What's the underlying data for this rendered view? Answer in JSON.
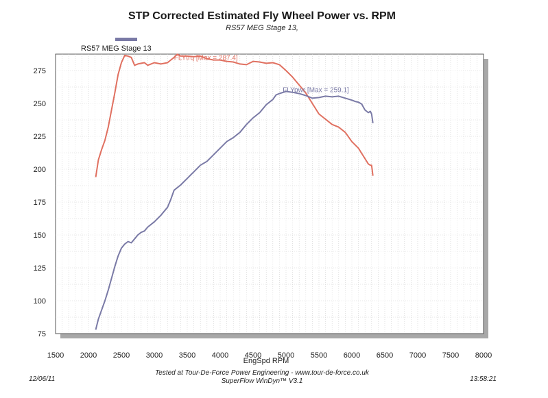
{
  "header": {
    "title": "STP Corrected Estimated Fly Wheel Power vs. RPM",
    "subtitle": "RS57 MEG Stage 13,"
  },
  "legend": {
    "label": "RS57 MEG Stage 13",
    "color": "#7a7aa6"
  },
  "footer": {
    "date": "12/06/11",
    "time": "13:58:21",
    "line1": "Tested at Tour-De-Force Power Engineering - www.tour-de-force.co.uk",
    "line2": "SuperFlow WinDyn™ V3.1"
  },
  "chart_data": {
    "type": "line",
    "title": "STP Corrected Estimated Fly Wheel Power vs. RPM",
    "subtitle": "RS57 MEG Stage 13,",
    "xlabel": "EngSpd RPM",
    "ylabel": "",
    "xlim": [
      1500,
      8000
    ],
    "ylim": [
      75,
      287.5
    ],
    "x_ticks": [
      1500,
      2000,
      2500,
      3000,
      3500,
      4000,
      4500,
      5000,
      5500,
      6000,
      6500,
      7000,
      7500,
      8000
    ],
    "y_ticks": [
      75,
      100,
      125,
      150,
      175,
      200,
      225,
      250,
      275
    ],
    "grid": true,
    "series": [
      {
        "name": "FLYtrq",
        "color": "#e07060",
        "annotation": "FLYtrq [Max = 287.4]",
        "annotation_anchor": [
          3300,
          283
        ],
        "points": [
          [
            2110,
            194
          ],
          [
            2150,
            207
          ],
          [
            2200,
            215
          ],
          [
            2250,
            222
          ],
          [
            2300,
            232
          ],
          [
            2350,
            245
          ],
          [
            2400,
            258
          ],
          [
            2450,
            272
          ],
          [
            2500,
            281
          ],
          [
            2550,
            286.5
          ],
          [
            2600,
            286
          ],
          [
            2650,
            285
          ],
          [
            2700,
            279
          ],
          [
            2750,
            280
          ],
          [
            2800,
            280.5
          ],
          [
            2850,
            281
          ],
          [
            2900,
            279
          ],
          [
            2950,
            280
          ],
          [
            3000,
            281
          ],
          [
            3100,
            280
          ],
          [
            3200,
            281
          ],
          [
            3250,
            283
          ],
          [
            3300,
            285
          ],
          [
            3350,
            287.4
          ],
          [
            3400,
            286
          ],
          [
            3500,
            286
          ],
          [
            3600,
            285.5
          ],
          [
            3700,
            286
          ],
          [
            3800,
            284
          ],
          [
            3900,
            283
          ],
          [
            4000,
            283
          ],
          [
            4100,
            282
          ],
          [
            4200,
            281.5
          ],
          [
            4300,
            280
          ],
          [
            4400,
            279.5
          ],
          [
            4500,
            282
          ],
          [
            4600,
            281.5
          ],
          [
            4700,
            280.5
          ],
          [
            4800,
            281
          ],
          [
            4900,
            279.5
          ],
          [
            5000,
            275
          ],
          [
            5100,
            270
          ],
          [
            5200,
            264
          ],
          [
            5300,
            258
          ],
          [
            5400,
            250
          ],
          [
            5500,
            242
          ],
          [
            5600,
            238
          ],
          [
            5700,
            234
          ],
          [
            5800,
            232
          ],
          [
            5900,
            228
          ],
          [
            6000,
            221
          ],
          [
            6100,
            216
          ],
          [
            6150,
            212
          ],
          [
            6200,
            208
          ],
          [
            6250,
            204
          ],
          [
            6280,
            203
          ],
          [
            6300,
            203
          ],
          [
            6320,
            195
          ]
        ]
      },
      {
        "name": "FLYpwr",
        "color": "#7a7aa6",
        "annotation": "FLYpwr [Max = 259.1]",
        "annotation_anchor": [
          4950,
          258.5
        ],
        "points": [
          [
            2110,
            78
          ],
          [
            2150,
            86
          ],
          [
            2200,
            93
          ],
          [
            2250,
            100
          ],
          [
            2300,
            108
          ],
          [
            2350,
            117
          ],
          [
            2400,
            126
          ],
          [
            2450,
            134
          ],
          [
            2500,
            140
          ],
          [
            2550,
            143
          ],
          [
            2600,
            145
          ],
          [
            2650,
            144
          ],
          [
            2700,
            147
          ],
          [
            2750,
            150
          ],
          [
            2800,
            152
          ],
          [
            2850,
            153
          ],
          [
            2900,
            156
          ],
          [
            3000,
            160
          ],
          [
            3100,
            165
          ],
          [
            3200,
            171
          ],
          [
            3250,
            177
          ],
          [
            3300,
            184
          ],
          [
            3400,
            188
          ],
          [
            3500,
            193
          ],
          [
            3600,
            198
          ],
          [
            3700,
            203
          ],
          [
            3800,
            206
          ],
          [
            3900,
            211
          ],
          [
            4000,
            216
          ],
          [
            4100,
            221
          ],
          [
            4200,
            224
          ],
          [
            4300,
            228
          ],
          [
            4400,
            234
          ],
          [
            4500,
            239
          ],
          [
            4600,
            243
          ],
          [
            4700,
            249
          ],
          [
            4800,
            253
          ],
          [
            4850,
            256.5
          ],
          [
            4900,
            257.5
          ],
          [
            5000,
            259.1
          ],
          [
            5100,
            258.5
          ],
          [
            5200,
            257.5
          ],
          [
            5300,
            256
          ],
          [
            5400,
            254
          ],
          [
            5500,
            254.5
          ],
          [
            5600,
            255.5
          ],
          [
            5700,
            255
          ],
          [
            5800,
            255.5
          ],
          [
            5900,
            254
          ],
          [
            6000,
            252.5
          ],
          [
            6050,
            251.5
          ],
          [
            6100,
            251
          ],
          [
            6150,
            249.5
          ],
          [
            6200,
            245
          ],
          [
            6250,
            243
          ],
          [
            6280,
            244
          ],
          [
            6300,
            242
          ],
          [
            6320,
            235
          ]
        ]
      }
    ]
  }
}
